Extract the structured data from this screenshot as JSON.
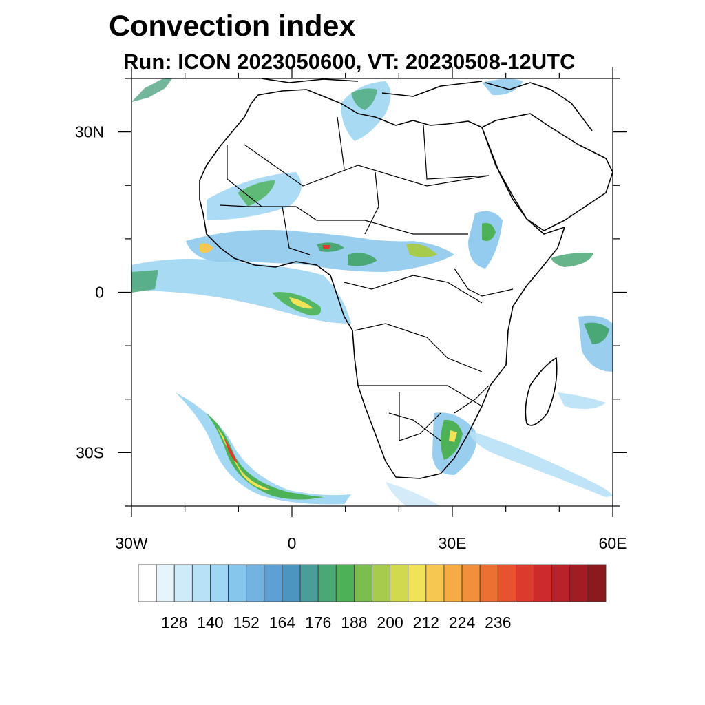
{
  "title": "Convection index",
  "subtitle": "Run: ICON 2023050600,  VT: 20230508-12UTC",
  "map": {
    "lon_range": [
      -30,
      60
    ],
    "lat_range": [
      -40,
      40
    ],
    "x_ticks": [
      {
        "value": -30,
        "label": "30W"
      },
      {
        "value": 0,
        "label": "0"
      },
      {
        "value": 30,
        "label": "30E"
      },
      {
        "value": 60,
        "label": "60E"
      }
    ],
    "y_ticks": [
      {
        "value": 30,
        "label": "30N"
      },
      {
        "value": 0,
        "label": "0"
      },
      {
        "value": -30,
        "label": "30S"
      }
    ]
  },
  "colorbar": {
    "colors": [
      "#ffffff",
      "#e6f4fc",
      "#cfeaf8",
      "#b8e0f6",
      "#9ed6f3",
      "#87c6ec",
      "#72b3e2",
      "#5e9fd4",
      "#4d95c1",
      "#4a9e9a",
      "#4aa776",
      "#4db257",
      "#7bbd4f",
      "#a7cb4d",
      "#d1d94f",
      "#efe357",
      "#f7c851",
      "#f6ab45",
      "#f28f3c",
      "#ed7033",
      "#e6532e",
      "#dc3a2c",
      "#cc2a2c",
      "#b82229",
      "#a11d23",
      "#8a1a1e"
    ],
    "labels": [
      "128",
      "140",
      "152",
      "164",
      "176",
      "188",
      "200",
      "212",
      "224",
      "236"
    ]
  }
}
